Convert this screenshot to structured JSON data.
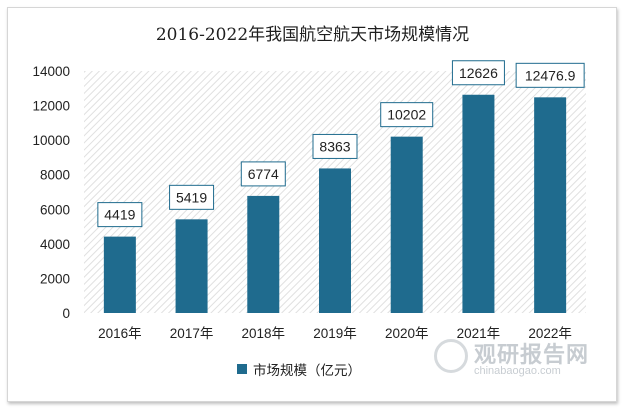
{
  "chart_data": {
    "type": "bar",
    "title": "2016-2022年我国航空航天市场规模情况",
    "categories": [
      "2016年",
      "2017年",
      "2018年",
      "2019年",
      "2020年",
      "2021年",
      "2022年"
    ],
    "series": [
      {
        "name": "市场规模（亿元）",
        "values": [
          4419,
          5419,
          6774,
          8363,
          10202,
          12626,
          12476.9
        ],
        "labels": [
          "4419",
          "5419",
          "6774",
          "8363",
          "10202",
          "12626",
          "12476.9"
        ]
      }
    ],
    "yticks": [
      "0",
      "2000",
      "4000",
      "6000",
      "8000",
      "10000",
      "12000",
      "14000"
    ],
    "ylim": [
      0,
      14000
    ],
    "grid": false,
    "legend": "bottom",
    "colors": {
      "bar": "#1f6b8e",
      "plot_hatch": "#dcdcdc",
      "label_border": "#1f6b8e"
    }
  },
  "watermark": {
    "brand": "观研报告网",
    "url": "chinabaogao.com"
  }
}
